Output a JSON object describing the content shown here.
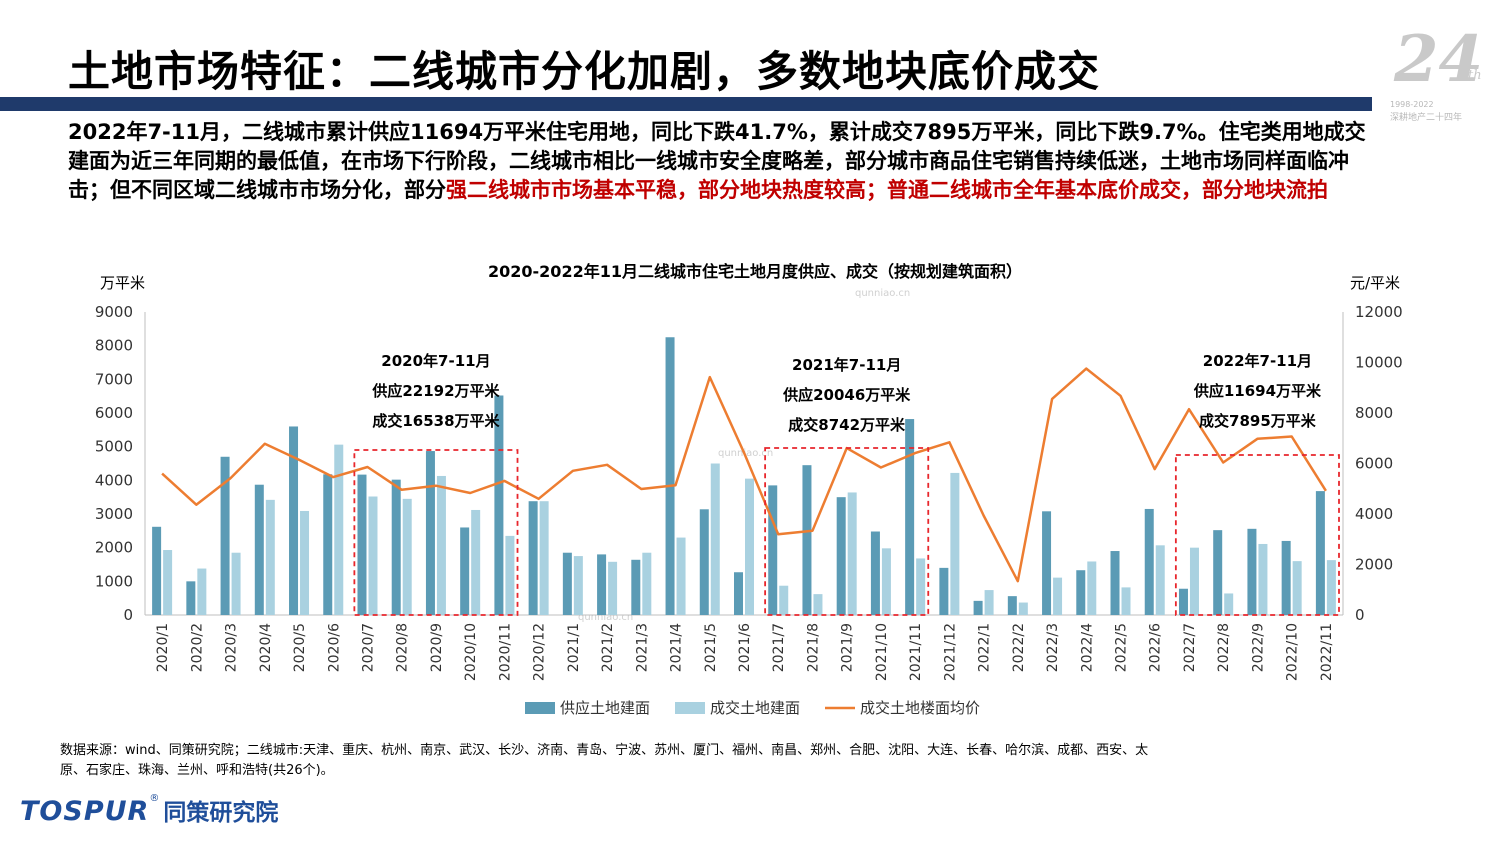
{
  "page": {
    "title": "土地市场特征：二线城市分化加剧，多数地块底价成交",
    "anniversary": {
      "number": "24",
      "suffix": "th",
      "years": "1998-2022",
      "subtitle": "深耕地产二十四年"
    }
  },
  "summary": {
    "normal": "2022年7-11月，二线城市累计供应11694万平米住宅用地，同比下跌41.7%，累计成交7895万平米，同比下跌9.7%。住宅类用地成交建面为近三年同期的最低值，在市场下行阶段，二线城市相比一线城市安全度略差，部分城市商品住宅销售持续低迷，土地市场同样面临冲击；但不同区域二线城市市场分化，部分",
    "highlight": "强二线城市市场基本平稳，部分地块热度较高；普通二线城市全年基本底价成交，部分地块流拍"
  },
  "chart_data": {
    "type": "bar",
    "title": "2020-2022年11月二线城市住宅土地月度供应、成交（按规划建筑面积）",
    "ylabel_left": "万平米",
    "ylabel_right": "元/平米",
    "ylim_left": [
      0,
      9000
    ],
    "yticks_left": [
      0,
      1000,
      2000,
      3000,
      4000,
      5000,
      6000,
      7000,
      8000,
      9000
    ],
    "ylim_right": [
      0,
      12000
    ],
    "yticks_right": [
      0,
      2000,
      4000,
      6000,
      8000,
      10000,
      12000
    ],
    "legend_position": "bottom",
    "categories": [
      "2020/1",
      "2020/2",
      "2020/3",
      "2020/4",
      "2020/5",
      "2020/6",
      "2020/7",
      "2020/8",
      "2020/9",
      "2020/10",
      "2020/11",
      "2020/12",
      "2021/1",
      "2021/2",
      "2021/3",
      "2021/4",
      "2021/5",
      "2021/6",
      "2021/7",
      "2021/8",
      "2021/9",
      "2021/10",
      "2021/11",
      "2021/12",
      "2022/1",
      "2022/2",
      "2022/3",
      "2022/4",
      "2022/5",
      "2022/6",
      "2022/7",
      "2022/8",
      "2022/9",
      "2022/10",
      "2022/11"
    ],
    "series": [
      {
        "name": "供应土地建面",
        "type": "bar",
        "axis": "left",
        "color": "#5b9bb5",
        "values": [
          2620,
          1000,
          4700,
          3870,
          5600,
          4180,
          4170,
          4020,
          4870,
          2600,
          6520,
          3380,
          1850,
          1800,
          1640,
          8250,
          3140,
          1270,
          3850,
          4450,
          3500,
          2480,
          5820,
          1400,
          420,
          560,
          3080,
          1330,
          1900,
          3150,
          780,
          2520,
          2560,
          2200,
          3680
        ]
      },
      {
        "name": "成交土地建面",
        "type": "bar",
        "axis": "left",
        "color": "#a9d1e0",
        "values": [
          1930,
          1380,
          1850,
          3420,
          3090,
          5060,
          3520,
          3450,
          4130,
          3120,
          2350,
          3380,
          1750,
          1580,
          1850,
          2300,
          4500,
          4050,
          870,
          620,
          3640,
          1980,
          1680,
          4220,
          740,
          370,
          1110,
          1590,
          820,
          2070,
          2000,
          640,
          2110,
          1600,
          1630
        ]
      },
      {
        "name": "成交土地楼面均价",
        "type": "line",
        "axis": "right",
        "color": "#ed7d31",
        "values": [
          5600,
          4370,
          5420,
          6780,
          6150,
          5460,
          5860,
          4960,
          5120,
          4830,
          5310,
          4600,
          5710,
          5950,
          4990,
          5140,
          9420,
          6430,
          3200,
          3340,
          6610,
          5840,
          6410,
          6840,
          3940,
          1340,
          8560,
          9760,
          8680,
          5780,
          8150,
          6040,
          6980,
          7070,
          4920
        ]
      }
    ],
    "annotations": [
      {
        "label": "2020年7-11月",
        "supply": "供应22192万平米",
        "deal": "成交16538万平米",
        "range": [
          "2020/7",
          "2020/11"
        ]
      },
      {
        "label": "2021年7-11月",
        "supply": "供应20046万平米",
        "deal": "成交8742万平米",
        "range": [
          "2021/7",
          "2021/11"
        ]
      },
      {
        "label": "2022年7-11月",
        "supply": "供应11694万平米",
        "deal": "成交7895万平米",
        "range": [
          "2022/7",
          "2022/11"
        ]
      }
    ]
  },
  "source": "数据来源：wind、同策研究院；二线城市:天津、重庆、杭州、南京、武汉、长沙、济南、青岛、宁波、苏州、厦门、福州、南昌、郑州、合肥、沈阳、大连、长春、哈尔滨、成都、西安、太原、石家庄、珠海、兰州、呼和浩特(共26个)。",
  "logo": {
    "english": "TOSPUR",
    "registered": "®",
    "chinese": "同策研究院"
  },
  "watermark": "qunniao.cn"
}
